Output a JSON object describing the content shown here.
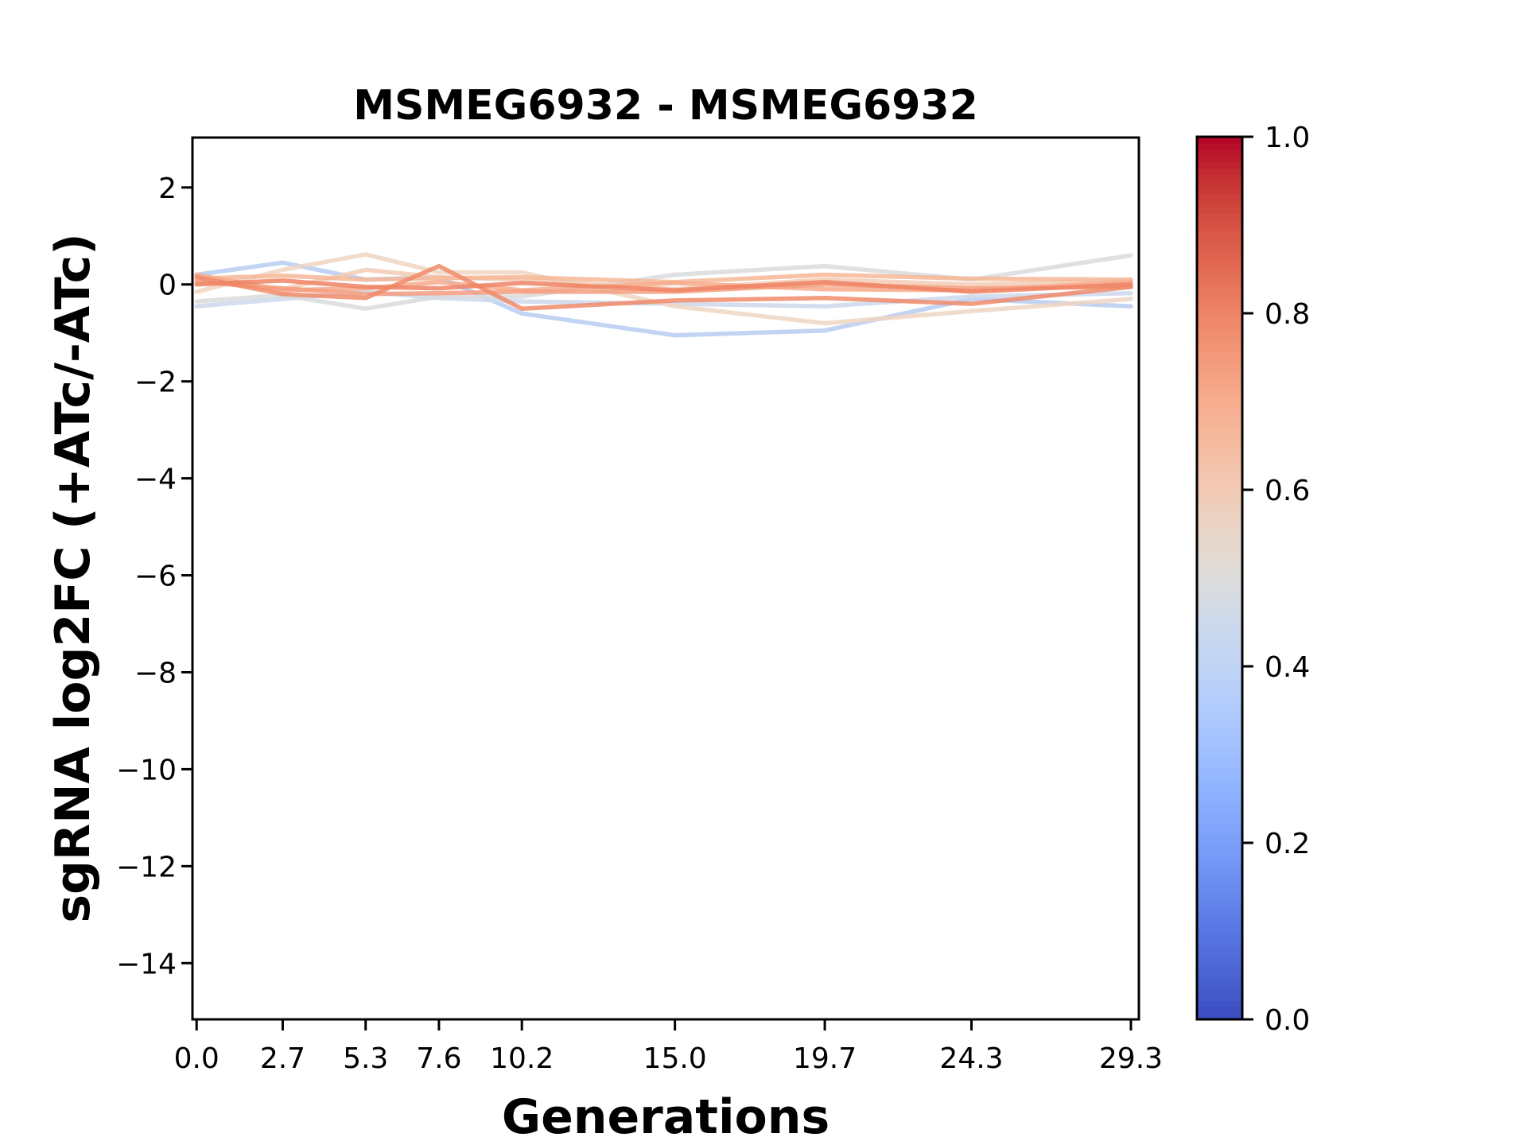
{
  "figure": {
    "background": "#ffffff",
    "axis_color": "#000000"
  },
  "chart_data": {
    "type": "line",
    "title": "MSMEG6932 - MSMEG6932",
    "xlabel": "Generations",
    "ylabel": "sgRNA log2FC (+ATc/-ATc)",
    "grid": false,
    "legend": "none",
    "x": [
      0.0,
      2.7,
      5.3,
      7.6,
      10.2,
      15.0,
      19.7,
      24.3,
      29.3
    ],
    "xlim": [
      -0.13,
      29.55
    ],
    "ylim": [
      -15.16,
      3.03
    ],
    "xtick_values": [
      0.0,
      2.7,
      5.3,
      7.6,
      10.2,
      15.0,
      19.7,
      24.3,
      29.3
    ],
    "xtick_labels": [
      "0.0",
      "2.7",
      "5.3",
      "7.6",
      "10.2",
      "15.0",
      "19.7",
      "24.3",
      "29.3"
    ],
    "ytick_values": [
      2,
      0,
      -2,
      -4,
      -6,
      -8,
      -10,
      -12,
      -14
    ],
    "ytick_labels": [
      "2",
      "0",
      "−2",
      "−4",
      "−6",
      "−8",
      "−10",
      "−12",
      "−14"
    ],
    "series": [
      {
        "name": "line-1",
        "color": "#b6cdf2",
        "colorbar_value": 0.38,
        "values": [
          0.2,
          0.45,
          0.1,
          0.15,
          -0.6,
          -1.05,
          -0.95,
          -0.3,
          -0.45
        ]
      },
      {
        "name": "line-2",
        "color": "#ccd8ec",
        "colorbar_value": 0.44,
        "values": [
          -0.45,
          -0.3,
          -0.15,
          -0.28,
          -0.35,
          -0.4,
          -0.45,
          -0.25,
          -0.18
        ]
      },
      {
        "name": "line-3",
        "color": "#d9dadd",
        "colorbar_value": 0.5,
        "values": [
          -0.35,
          -0.22,
          -0.5,
          -0.25,
          -0.25,
          0.2,
          0.38,
          0.1,
          0.6
        ]
      },
      {
        "name": "line-4",
        "color": "#eed5c2",
        "colorbar_value": 0.58,
        "values": [
          -0.15,
          0.3,
          0.62,
          0.25,
          0.25,
          -0.45,
          -0.8,
          -0.55,
          -0.3
        ]
      },
      {
        "name": "line-5",
        "color": "#f2cdb6",
        "colorbar_value": 0.6,
        "values": [
          0.1,
          -0.1,
          0.3,
          0.15,
          0.1,
          -0.1,
          0.1,
          0.0,
          0.08
        ]
      },
      {
        "name": "line-6",
        "color": "#f6b797",
        "colorbar_value": 0.65,
        "values": [
          0.12,
          0.18,
          0.1,
          0.13,
          0.15,
          0.05,
          0.2,
          0.12,
          0.1
        ]
      },
      {
        "name": "line-7",
        "color": "#f7a98b",
        "colorbar_value": 0.69,
        "values": [
          0.2,
          -0.12,
          -0.08,
          0.05,
          -0.12,
          0.03,
          -0.1,
          -0.12,
          0.05
        ]
      },
      {
        "name": "line-8",
        "color": "#f49d7f",
        "colorbar_value": 0.72,
        "values": [
          0.05,
          -0.08,
          -0.2,
          -0.18,
          -0.15,
          -0.15,
          0.0,
          -0.08,
          -0.05
        ]
      },
      {
        "name": "line-9",
        "color": "#f08b6a",
        "colorbar_value": 0.77,
        "values": [
          0.15,
          -0.2,
          -0.28,
          0.38,
          -0.5,
          -0.33,
          -0.28,
          -0.4,
          -0.05
        ]
      },
      {
        "name": "line-10",
        "color": "#ee8465",
        "colorbar_value": 0.79,
        "values": [
          0.0,
          0.08,
          -0.05,
          -0.08,
          0.03,
          -0.12,
          0.05,
          -0.15,
          0.0
        ]
      }
    ],
    "line_style": {
      "width": 5.5,
      "opacity": 0.85
    },
    "colorbar": {
      "colormap": "coolwarm",
      "orientation": "vertical",
      "position": "right",
      "tick_values": [
        0.0,
        0.2,
        0.4,
        0.6,
        0.8,
        1.0
      ],
      "tick_labels": [
        "0.0",
        "0.2",
        "0.4",
        "0.6",
        "0.8",
        "1.0"
      ],
      "stops": [
        [
          0.0,
          "#3b4cc0"
        ],
        [
          0.05,
          "#4a63d3"
        ],
        [
          0.1,
          "#5977e3"
        ],
        [
          0.15,
          "#688bef"
        ],
        [
          0.2,
          "#7b9ff9"
        ],
        [
          0.25,
          "#8caffe"
        ],
        [
          0.3,
          "#9ebeff"
        ],
        [
          0.35,
          "#afcafc"
        ],
        [
          0.4,
          "#c0d4f5"
        ],
        [
          0.45,
          "#cdd9ec"
        ],
        [
          0.5,
          "#dddcdb"
        ],
        [
          0.55,
          "#e8d6c9"
        ],
        [
          0.6,
          "#f2cab5"
        ],
        [
          0.65,
          "#f5bca1"
        ],
        [
          0.7,
          "#f7ad90"
        ],
        [
          0.75,
          "#f3997a"
        ],
        [
          0.8,
          "#ee8468"
        ],
        [
          0.85,
          "#e36c55"
        ],
        [
          0.9,
          "#d65244"
        ],
        [
          0.95,
          "#c63434"
        ],
        [
          1.0,
          "#b40426"
        ]
      ]
    }
  }
}
